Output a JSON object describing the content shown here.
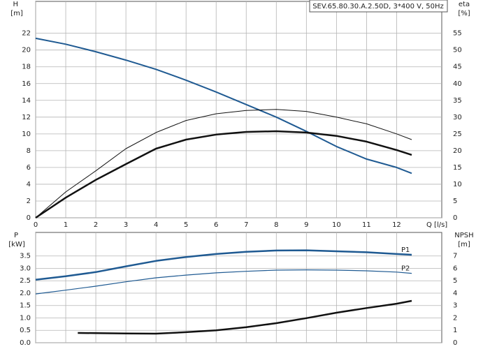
{
  "chart_data": [
    {
      "type": "line",
      "title": "SEV.65.80.30.A.2.50D, 3*400 V, 50Hz",
      "xlabel": "Q [l/s]",
      "ylabel": [
        "H",
        "[m]"
      ],
      "y2label": [
        "eta",
        "[%]"
      ],
      "xlim": [
        0,
        13.5
      ],
      "xticks": [
        0,
        1,
        2,
        3,
        4,
        5,
        6,
        7,
        8,
        9,
        10,
        11,
        12
      ],
      "ylim": [
        0,
        25.8
      ],
      "yticks": [
        0,
        2,
        4,
        6,
        8,
        10,
        12,
        14,
        16,
        18,
        20,
        22
      ],
      "y2lim": [
        0,
        64.5
      ],
      "y2ticks": [
        0,
        5,
        10,
        15,
        20,
        25,
        30,
        35,
        40,
        45,
        50,
        55
      ],
      "grid": true,
      "x": [
        0,
        1,
        2,
        3,
        4,
        5,
        6,
        7,
        8,
        9,
        10,
        11,
        12,
        12.5
      ],
      "series": [
        {
          "color": "#1f5a92",
          "width": 2,
          "values": [
            21.4,
            20.7,
            19.8,
            18.8,
            17.7,
            16.4,
            15.0,
            13.5,
            12.0,
            10.3,
            8.5,
            7.0,
            6.0,
            5.3
          ]
        },
        {
          "color": "#111111",
          "width": 1,
          "axis": "y2",
          "values": [
            0,
            7.7,
            14,
            20.6,
            25.4,
            29,
            31,
            32,
            32.3,
            31.7,
            30,
            28,
            25,
            23.3
          ]
        },
        {
          "color": "#111111",
          "width": 2.5,
          "axis": "y2",
          "values": [
            0,
            6,
            11.3,
            16,
            20.6,
            23.3,
            24.8,
            25.6,
            25.8,
            25.4,
            24.4,
            22.7,
            20.2,
            18.75
          ]
        }
      ]
    },
    {
      "type": "line",
      "ylabel": [
        "P",
        "[kW]"
      ],
      "y2label": [
        "NPSH",
        "[m]"
      ],
      "xlim": [
        0,
        13.5
      ],
      "xticks": [
        0,
        1,
        2,
        3,
        4,
        5,
        6,
        7,
        8,
        9,
        10,
        11,
        12
      ],
      "ylim": [
        0,
        4.45
      ],
      "yticks": [
        {
          "value": 0,
          "label": "0.0"
        },
        0.5,
        {
          "value": 1,
          "label": "1.0"
        },
        1.5,
        {
          "value": 2,
          "label": "2.0"
        },
        2.5,
        {
          "value": 3,
          "label": "3.0"
        },
        3.5
      ],
      "y2lim": [
        0,
        8.9
      ],
      "y2ticks": [
        0,
        1,
        2,
        3,
        4,
        5,
        6,
        7
      ],
      "grid": true,
      "x": [
        0,
        1,
        2,
        3,
        4,
        5,
        6,
        7,
        8,
        9,
        10,
        11,
        12,
        12.5
      ],
      "series": [
        {
          "name": "P1",
          "color": "#1f5a92",
          "width": 2.5,
          "values": [
            2.54,
            2.68,
            2.85,
            3.08,
            3.3,
            3.46,
            3.58,
            3.67,
            3.72,
            3.73,
            3.69,
            3.65,
            3.58,
            3.55
          ]
        },
        {
          "name": "P2",
          "color": "#1f5a92",
          "width": 1.2,
          "values": [
            1.97,
            2.12,
            2.28,
            2.46,
            2.62,
            2.73,
            2.82,
            2.88,
            2.93,
            2.94,
            2.93,
            2.9,
            2.85,
            2.8
          ]
        },
        {
          "color": "#111111",
          "width": 2.5,
          "axis": "y2",
          "x": [
            1.4,
            2,
            3,
            4,
            5,
            6,
            7,
            8,
            9,
            10,
            11,
            12,
            12.5
          ],
          "values": [
            0.79,
            0.77,
            0.75,
            0.73,
            0.85,
            1.0,
            1.25,
            1.58,
            1.98,
            2.42,
            2.8,
            3.15,
            3.38
          ]
        }
      ]
    }
  ]
}
